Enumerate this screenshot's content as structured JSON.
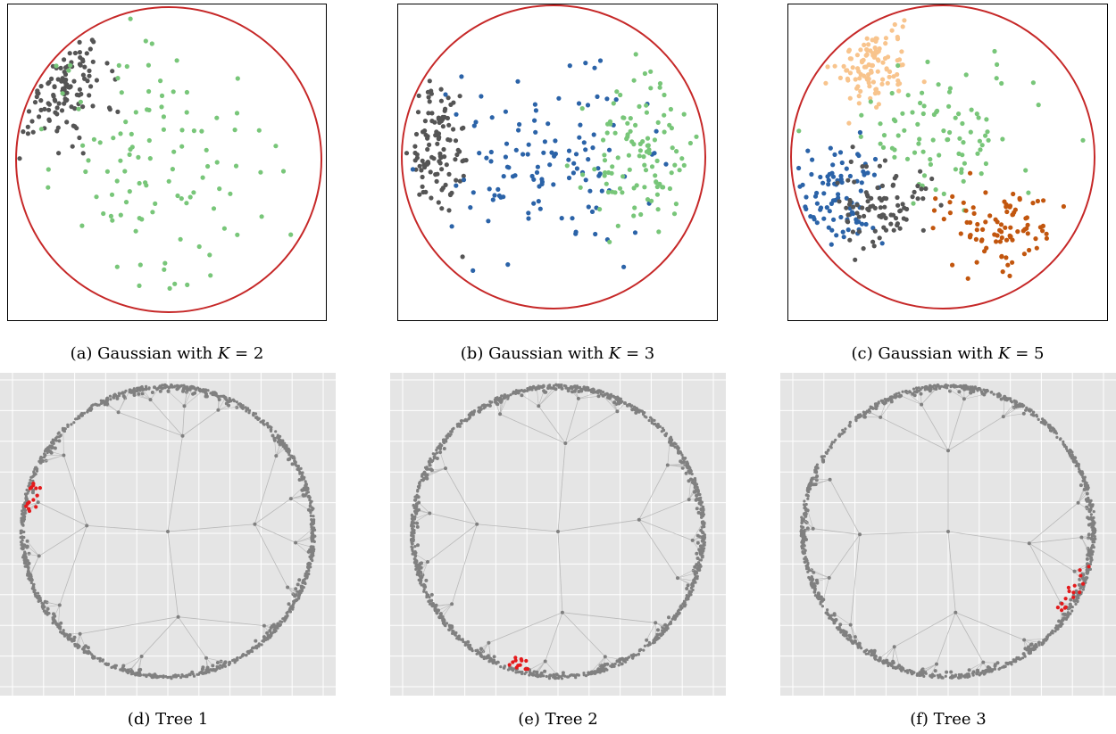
{
  "colors": {
    "boundary": "#c62828",
    "dark_gray": "#555555",
    "light_green": "#78c679",
    "blue": "#2b63a8",
    "orange": "#c2560e",
    "peach": "#f8c48d",
    "tree_gray": "#808080",
    "tree_edge": "#b9b9b9",
    "highlight_red": "#e41a1c",
    "grid_bg": "#e5e5e5",
    "grid_line": "#ffffff"
  },
  "captions": [
    {
      "prefix": "(a) Gaussian with ",
      "var": "K",
      "suffix": " = 2"
    },
    {
      "prefix": "(b) Gaussian with ",
      "var": "K",
      "suffix": " = 3"
    },
    {
      "prefix": "(c) Gaussian with ",
      "var": "K",
      "suffix": " = 5"
    },
    {
      "prefix": "(d) Tree 1",
      "var": "",
      "suffix": ""
    },
    {
      "prefix": "(e) Tree 2",
      "var": "",
      "suffix": ""
    },
    {
      "prefix": "(f) Tree 3",
      "var": "",
      "suffix": ""
    }
  ],
  "chart_data": [
    {
      "type": "scatter",
      "id": "gaussian-k2",
      "title": "",
      "domain": "poincare-disk",
      "xlim": [
        -1,
        1
      ],
      "ylim": [
        -1,
        1
      ],
      "series": [
        {
          "color": "dark_gray",
          "center": [
            -0.78,
            0.55
          ],
          "spread": [
            0.18,
            0.22
          ],
          "count": 120,
          "seed": 11
        },
        {
          "color": "light_green",
          "center": [
            -0.05,
            -0.05
          ],
          "spread": [
            0.45,
            0.5
          ],
          "count": 110,
          "seed": 12
        }
      ]
    },
    {
      "type": "scatter",
      "id": "gaussian-k3",
      "title": "",
      "domain": "poincare-disk",
      "xlim": [
        -1,
        1
      ],
      "ylim": [
        -1,
        1
      ],
      "series": [
        {
          "color": "dark_gray",
          "center": [
            -0.77,
            0.02
          ],
          "spread": [
            0.12,
            0.22
          ],
          "count": 110,
          "seed": 21
        },
        {
          "color": "blue",
          "center": [
            -0.05,
            -0.02
          ],
          "spread": [
            0.32,
            0.26
          ],
          "count": 120,
          "seed": 22
        },
        {
          "color": "light_green",
          "center": [
            0.55,
            0.0
          ],
          "spread": [
            0.17,
            0.22
          ],
          "count": 110,
          "seed": 23
        }
      ]
    },
    {
      "type": "scatter",
      "id": "gaussian-k5",
      "title": "",
      "domain": "poincare-disk",
      "xlim": [
        -1,
        1
      ],
      "ylim": [
        -1,
        1
      ],
      "series": [
        {
          "color": "peach",
          "center": [
            -0.48,
            0.62
          ],
          "spread": [
            0.13,
            0.16
          ],
          "count": 110,
          "seed": 31
        },
        {
          "color": "light_green",
          "center": [
            -0.02,
            0.18
          ],
          "spread": [
            0.35,
            0.22
          ],
          "count": 90,
          "seed": 32
        },
        {
          "color": "blue",
          "center": [
            -0.7,
            -0.28
          ],
          "spread": [
            0.13,
            0.17
          ],
          "count": 90,
          "seed": 33
        },
        {
          "color": "dark_gray",
          "center": [
            -0.42,
            -0.32
          ],
          "spread": [
            0.17,
            0.15
          ],
          "count": 90,
          "seed": 34
        },
        {
          "color": "orange",
          "center": [
            0.4,
            -0.47
          ],
          "spread": [
            0.22,
            0.15
          ],
          "count": 90,
          "seed": 35
        }
      ]
    },
    {
      "type": "scatter",
      "id": "tree-1",
      "title": "",
      "domain": "hyperbolic-tree",
      "hubs": [
        {
          "pos": [
            -0.55,
            0.04
          ],
          "angles": [
            132,
            226
          ]
        },
        {
          "pos": [
            0.59,
            0.05
          ],
          "angles": [
            -35,
            45
          ]
        },
        {
          "pos": [
            0.1,
            0.65
          ],
          "angles": [
            60,
            120
          ]
        },
        {
          "pos": [
            0.07,
            -0.58
          ],
          "angles": [
            215,
            330
          ]
        }
      ],
      "highlight": {
        "angle_range": [
          160,
          172
        ],
        "count": 14
      }
    },
    {
      "type": "scatter",
      "id": "tree-2",
      "title": "",
      "domain": "hyperbolic-tree",
      "hubs": [
        {
          "pos": [
            -0.55,
            0.05
          ],
          "angles": [
            140,
            225
          ]
        },
        {
          "pos": [
            0.55,
            0.08
          ],
          "angles": [
            -30,
            40
          ]
        },
        {
          "pos": [
            0.05,
            0.6
          ],
          "angles": [
            55,
            125
          ]
        },
        {
          "pos": [
            0.03,
            -0.55
          ],
          "angles": [
            225,
            330
          ]
        }
      ],
      "highlight": {
        "angle_range": [
          250,
          260
        ],
        "count": 12
      }
    },
    {
      "type": "scatter",
      "id": "tree-3",
      "title": "",
      "domain": "hyperbolic-tree",
      "hubs": [
        {
          "pos": [
            -0.6,
            -0.02
          ],
          "angles": [
            145,
            235
          ]
        },
        {
          "pos": [
            0.55,
            -0.08
          ],
          "angles": [
            -40,
            20
          ]
        },
        {
          "pos": [
            0.0,
            0.55
          ],
          "angles": [
            55,
            130
          ]
        },
        {
          "pos": [
            0.05,
            -0.55
          ],
          "angles": [
            235,
            315
          ]
        }
      ],
      "highlight": {
        "angle_range": [
          -35,
          -14
        ],
        "count": 16
      }
    }
  ]
}
